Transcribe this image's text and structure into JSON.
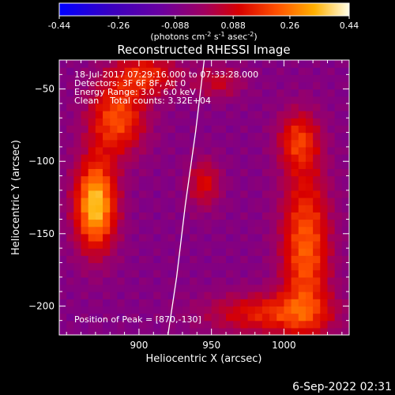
{
  "chart_data": {
    "type": "heatmap",
    "title": "Reconstructed RHESSI Image",
    "xlabel": "Heliocentric X (arcsec)",
    "ylabel": "Heliocentric Y (arcsec)",
    "xlim": [
      845,
      1045
    ],
    "ylim": [
      -220,
      -30
    ],
    "x_ticks": [
      900,
      950,
      1000
    ],
    "y_ticks": [
      -50,
      -100,
      -150,
      -200
    ],
    "colorbar": {
      "range": [
        -0.44,
        0.44
      ],
      "ticks": [
        "-0.44",
        "-0.26",
        "-0.088",
        "0.088",
        "0.26",
        "0.44"
      ],
      "unit_label": "(photons cm",
      "unit_exp1": "-2",
      "unit_mid1": " s",
      "unit_exp2": "-1",
      "unit_mid2": " asec",
      "unit_exp3": "-2",
      "unit_end": ")"
    },
    "info_lines": [
      "18-Jul-2017 07:29:16.000 to 07:33:28.000",
      "Detectors: 3F 6F 8F, Att 0",
      "Energy Range: 3.0 - 6.0 keV",
      "Clean    Total counts: 3.32E+04"
    ],
    "peak_label": "Position of Peak = [870,-130]",
    "peak_value": 0.44,
    "limb_curve_x": [
      945,
      939,
      932,
      926,
      920
    ],
    "limb_curve_y": [
      -30,
      -80,
      -130,
      -180,
      -220
    ],
    "sources": [
      {
        "x": 870,
        "y": -130,
        "amp": 0.44,
        "sx": 10,
        "sy": 22
      },
      {
        "x": 885,
        "y": -70,
        "amp": 0.28,
        "sx": 14,
        "sy": 18
      },
      {
        "x": 905,
        "y": -40,
        "amp": 0.22,
        "sx": 16,
        "sy": 10
      },
      {
        "x": 1015,
        "y": -160,
        "amp": 0.3,
        "sx": 12,
        "sy": 40
      },
      {
        "x": 1010,
        "y": -85,
        "amp": 0.22,
        "sx": 10,
        "sy": 14
      },
      {
        "x": 945,
        "y": -115,
        "amp": 0.18,
        "sx": 8,
        "sy": 12
      },
      {
        "x": 955,
        "y": -45,
        "amp": 0.14,
        "sx": 12,
        "sy": 8
      },
      {
        "x": 990,
        "y": -205,
        "amp": 0.22,
        "sx": 30,
        "sy": 10
      }
    ],
    "background_level": -0.07
  },
  "footer_timestamp": "6-Sep-2022 02:31"
}
